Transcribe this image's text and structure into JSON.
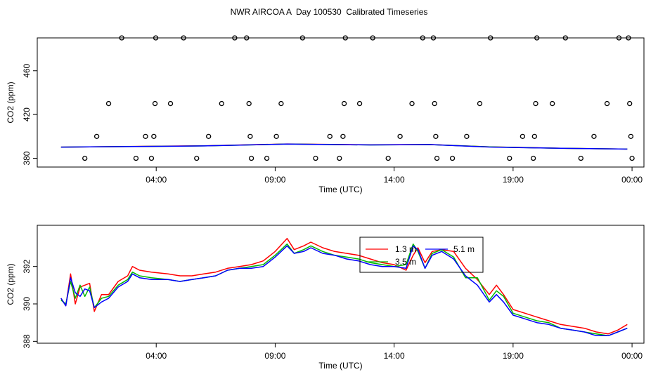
{
  "title": "NWR AIRCOA A  Day 100530  Calibrated Timeseries",
  "chart_data": [
    {
      "type": "scatter",
      "title": "",
      "xlabel": "Time (UTC)",
      "ylabel": "CO2 (ppm)",
      "x_unit": "hours UTC",
      "xlim": [
        -1.0,
        24.5
      ],
      "ylim": [
        372,
        490
      ],
      "xticks": [
        {
          "value": 4,
          "label": "04:00"
        },
        {
          "value": 9,
          "label": "09:00"
        },
        {
          "value": 14,
          "label": "14:00"
        },
        {
          "value": 19,
          "label": "19:00"
        },
        {
          "value": 24,
          "label": "00:00"
        }
      ],
      "yticks": [
        {
          "value": 380,
          "label": "380"
        },
        {
          "value": 420,
          "label": "420"
        },
        {
          "value": 460,
          "label": "460"
        }
      ],
      "calibration_points": [
        [
          1.0,
          380
        ],
        [
          1.5,
          400
        ],
        [
          2.0,
          430
        ],
        [
          2.55,
          490
        ],
        [
          3.15,
          380
        ],
        [
          3.55,
          400
        ],
        [
          3.8,
          380
        ],
        [
          3.9,
          400
        ],
        [
          3.95,
          430
        ],
        [
          3.98,
          490
        ],
        [
          4.6,
          430
        ],
        [
          5.15,
          490
        ],
        [
          5.7,
          380
        ],
        [
          6.2,
          400
        ],
        [
          6.75,
          430
        ],
        [
          7.3,
          490
        ],
        [
          7.8,
          490
        ],
        [
          7.9,
          430
        ],
        [
          7.95,
          400
        ],
        [
          8.0,
          380
        ],
        [
          8.65,
          380
        ],
        [
          9.25,
          430
        ],
        [
          9.05,
          400
        ],
        [
          10.15,
          490
        ],
        [
          10.7,
          380
        ],
        [
          11.3,
          400
        ],
        [
          11.7,
          380
        ],
        [
          11.85,
          400
        ],
        [
          11.9,
          430
        ],
        [
          11.95,
          490
        ],
        [
          12.55,
          430
        ],
        [
          13.1,
          490
        ],
        [
          13.75,
          380
        ],
        [
          14.25,
          400
        ],
        [
          14.75,
          430
        ],
        [
          15.2,
          490
        ],
        [
          15.65,
          490
        ],
        [
          15.7,
          430
        ],
        [
          15.75,
          400
        ],
        [
          15.8,
          380
        ],
        [
          16.45,
          380
        ],
        [
          17.05,
          400
        ],
        [
          17.6,
          430
        ],
        [
          18.05,
          490
        ],
        [
          18.85,
          380
        ],
        [
          19.4,
          400
        ],
        [
          19.85,
          380
        ],
        [
          19.9,
          400
        ],
        [
          19.95,
          430
        ],
        [
          20.0,
          490
        ],
        [
          20.65,
          430
        ],
        [
          21.2,
          490
        ],
        [
          21.85,
          380
        ],
        [
          22.4,
          400
        ],
        [
          22.95,
          430
        ],
        [
          23.45,
          490
        ],
        [
          23.85,
          490
        ],
        [
          23.9,
          430
        ],
        [
          23.95,
          400
        ],
        [
          24.0,
          380
        ]
      ],
      "series": [
        {
          "color": "#ff0000",
          "values": [
            [
              0.0,
              390.2
            ],
            [
              6.0,
              391.4
            ],
            [
              9.5,
              393.1
            ],
            [
              13.0,
              392.3
            ],
            [
              15.5,
              392.6
            ],
            [
              18.0,
              390.5
            ],
            [
              21.0,
              389.2
            ],
            [
              23.8,
              388.4
            ]
          ]
        },
        {
          "color": "#00bb00",
          "values": [
            [
              0.0,
              390.2
            ],
            [
              6.0,
              391.3
            ],
            [
              9.5,
              393.0
            ],
            [
              13.0,
              392.2
            ],
            [
              15.5,
              392.5
            ],
            [
              18.0,
              390.4
            ],
            [
              21.0,
              389.1
            ],
            [
              23.8,
              388.4
            ]
          ]
        },
        {
          "color": "#0000ff",
          "values": [
            [
              0.0,
              390.2
            ],
            [
              6.0,
              391.3
            ],
            [
              9.5,
              393.0
            ],
            [
              13.0,
              392.2
            ],
            [
              15.5,
              392.5
            ],
            [
              18.0,
              390.3
            ],
            [
              21.0,
              389.1
            ],
            [
              23.8,
              388.4
            ]
          ]
        }
      ]
    },
    {
      "type": "line",
      "title": "",
      "xlabel": "Time (UTC)",
      "ylabel": "CO2 (ppm)",
      "x_unit": "hours UTC",
      "xlim": [
        -1.0,
        24.5
      ],
      "ylim": [
        387.9,
        394.2
      ],
      "xticks": [
        {
          "value": 4,
          "label": "04:00"
        },
        {
          "value": 9,
          "label": "09:00"
        },
        {
          "value": 14,
          "label": "14:00"
        },
        {
          "value": 19,
          "label": "19:00"
        },
        {
          "value": 24,
          "label": "00:00"
        }
      ],
      "yticks": [
        {
          "value": 388,
          "label": "388"
        },
        {
          "value": 390,
          "label": "390"
        },
        {
          "value": 392,
          "label": "392"
        }
      ],
      "legend_placement": "upper-center",
      "legend": [
        {
          "label": "1.3 m",
          "color": "#ff0000"
        },
        {
          "label": "3.5 m",
          "color": "#00bb00"
        },
        {
          "label": "5.1 m",
          "color": "#0000ff"
        }
      ],
      "series": [
        {
          "name": "1.3 m",
          "color": "#ff0000",
          "values": [
            [
              0.0,
              390.3
            ],
            [
              0.2,
              389.9
            ],
            [
              0.4,
              391.6
            ],
            [
              0.6,
              390.0
            ],
            [
              0.8,
              390.9
            ],
            [
              1.0,
              391.0
            ],
            [
              1.2,
              391.1
            ],
            [
              1.4,
              389.6
            ],
            [
              1.7,
              390.5
            ],
            [
              2.0,
              390.5
            ],
            [
              2.4,
              391.2
            ],
            [
              2.8,
              391.5
            ],
            [
              3.0,
              392.0
            ],
            [
              3.3,
              391.8
            ],
            [
              3.8,
              391.7
            ],
            [
              4.5,
              391.6
            ],
            [
              5.0,
              391.5
            ],
            [
              5.5,
              391.5
            ],
            [
              6.0,
              391.6
            ],
            [
              6.5,
              391.7
            ],
            [
              7.0,
              391.9
            ],
            [
              7.5,
              392.0
            ],
            [
              8.0,
              392.1
            ],
            [
              8.5,
              392.3
            ],
            [
              9.0,
              392.8
            ],
            [
              9.5,
              393.5
            ],
            [
              9.8,
              392.9
            ],
            [
              10.2,
              393.1
            ],
            [
              10.5,
              393.3
            ],
            [
              11.0,
              393.0
            ],
            [
              11.5,
              392.8
            ],
            [
              12.0,
              392.7
            ],
            [
              12.5,
              392.6
            ],
            [
              13.0,
              392.4
            ],
            [
              13.5,
              392.2
            ],
            [
              14.0,
              392.1
            ],
            [
              14.5,
              391.8
            ],
            [
              14.8,
              392.6
            ],
            [
              15.0,
              393.0
            ],
            [
              15.3,
              392.2
            ],
            [
              15.6,
              392.8
            ],
            [
              16.0,
              392.9
            ],
            [
              16.5,
              392.8
            ],
            [
              17.0,
              391.9
            ],
            [
              17.5,
              391.3
            ],
            [
              18.0,
              390.5
            ],
            [
              18.3,
              391.0
            ],
            [
              18.6,
              390.5
            ],
            [
              19.0,
              389.7
            ],
            [
              19.5,
              389.5
            ],
            [
              20.0,
              389.3
            ],
            [
              20.5,
              389.1
            ],
            [
              21.0,
              388.9
            ],
            [
              21.5,
              388.8
            ],
            [
              22.0,
              388.7
            ],
            [
              22.5,
              388.5
            ],
            [
              23.0,
              388.4
            ],
            [
              23.4,
              388.6
            ],
            [
              23.8,
              388.9
            ]
          ]
        },
        {
          "name": "3.5 m",
          "color": "#00bb00",
          "values": [
            [
              0.0,
              390.2
            ],
            [
              0.2,
              390.0
            ],
            [
              0.4,
              391.2
            ],
            [
              0.6,
              390.3
            ],
            [
              0.8,
              391.0
            ],
            [
              1.0,
              390.4
            ],
            [
              1.2,
              390.9
            ],
            [
              1.4,
              389.8
            ],
            [
              1.7,
              390.3
            ],
            [
              2.0,
              390.4
            ],
            [
              2.4,
              391.0
            ],
            [
              2.8,
              391.3
            ],
            [
              3.0,
              391.7
            ],
            [
              3.3,
              391.5
            ],
            [
              3.8,
              391.4
            ],
            [
              4.5,
              391.3
            ],
            [
              5.0,
              391.2
            ],
            [
              5.5,
              391.3
            ],
            [
              6.0,
              391.4
            ],
            [
              6.5,
              391.5
            ],
            [
              7.0,
              391.8
            ],
            [
              7.5,
              391.9
            ],
            [
              8.0,
              392.0
            ],
            [
              8.5,
              392.1
            ],
            [
              9.0,
              392.6
            ],
            [
              9.5,
              393.2
            ],
            [
              9.8,
              392.7
            ],
            [
              10.2,
              392.9
            ],
            [
              10.5,
              393.1
            ],
            [
              11.0,
              392.8
            ],
            [
              11.5,
              392.6
            ],
            [
              12.0,
              392.5
            ],
            [
              12.5,
              392.4
            ],
            [
              13.0,
              392.2
            ],
            [
              13.5,
              392.1
            ],
            [
              14.0,
              392.0
            ],
            [
              14.5,
              392.1
            ],
            [
              14.8,
              393.2
            ],
            [
              15.0,
              392.8
            ],
            [
              15.3,
              391.9
            ],
            [
              15.6,
              392.7
            ],
            [
              16.0,
              392.9
            ],
            [
              16.5,
              392.5
            ],
            [
              17.0,
              391.4
            ],
            [
              17.5,
              391.4
            ],
            [
              18.0,
              390.2
            ],
            [
              18.3,
              390.7
            ],
            [
              18.6,
              390.4
            ],
            [
              19.0,
              389.5
            ],
            [
              19.5,
              389.3
            ],
            [
              20.0,
              389.1
            ],
            [
              20.5,
              389.0
            ],
            [
              21.0,
              388.7
            ],
            [
              21.5,
              388.6
            ],
            [
              22.0,
              388.5
            ],
            [
              22.5,
              388.4
            ],
            [
              23.0,
              388.3
            ],
            [
              23.4,
              388.5
            ],
            [
              23.8,
              388.7
            ]
          ]
        },
        {
          "name": "5.1 m",
          "color": "#0000ff",
          "values": [
            [
              0.0,
              390.3
            ],
            [
              0.2,
              389.9
            ],
            [
              0.4,
              391.4
            ],
            [
              0.6,
              390.6
            ],
            [
              0.8,
              390.4
            ],
            [
              1.0,
              390.8
            ],
            [
              1.2,
              390.7
            ],
            [
              1.4,
              389.8
            ],
            [
              1.7,
              390.1
            ],
            [
              2.0,
              390.3
            ],
            [
              2.4,
              390.9
            ],
            [
              2.8,
              391.2
            ],
            [
              3.0,
              391.6
            ],
            [
              3.3,
              391.4
            ],
            [
              3.8,
              391.3
            ],
            [
              4.5,
              391.3
            ],
            [
              5.0,
              391.2
            ],
            [
              5.5,
              391.3
            ],
            [
              6.0,
              391.4
            ],
            [
              6.5,
              391.5
            ],
            [
              7.0,
              391.8
            ],
            [
              7.5,
              391.9
            ],
            [
              8.0,
              391.9
            ],
            [
              8.5,
              392.0
            ],
            [
              9.0,
              392.5
            ],
            [
              9.5,
              393.1
            ],
            [
              9.8,
              392.7
            ],
            [
              10.2,
              392.8
            ],
            [
              10.5,
              393.0
            ],
            [
              11.0,
              392.7
            ],
            [
              11.5,
              392.6
            ],
            [
              12.0,
              392.4
            ],
            [
              12.5,
              392.3
            ],
            [
              13.0,
              392.1
            ],
            [
              13.5,
              392.0
            ],
            [
              14.0,
              392.0
            ],
            [
              14.5,
              391.9
            ],
            [
              14.8,
              393.1
            ],
            [
              15.0,
              392.9
            ],
            [
              15.3,
              391.9
            ],
            [
              15.6,
              392.6
            ],
            [
              16.0,
              392.8
            ],
            [
              16.5,
              392.4
            ],
            [
              17.0,
              391.5
            ],
            [
              17.5,
              391.0
            ],
            [
              18.0,
              390.1
            ],
            [
              18.3,
              390.5
            ],
            [
              18.6,
              390.1
            ],
            [
              19.0,
              389.4
            ],
            [
              19.5,
              389.2
            ],
            [
              20.0,
              389.0
            ],
            [
              20.5,
              388.9
            ],
            [
              21.0,
              388.7
            ],
            [
              21.5,
              388.6
            ],
            [
              22.0,
              388.5
            ],
            [
              22.5,
              388.3
            ],
            [
              23.0,
              388.3
            ],
            [
              23.4,
              388.5
            ],
            [
              23.8,
              388.7
            ]
          ]
        }
      ]
    }
  ]
}
